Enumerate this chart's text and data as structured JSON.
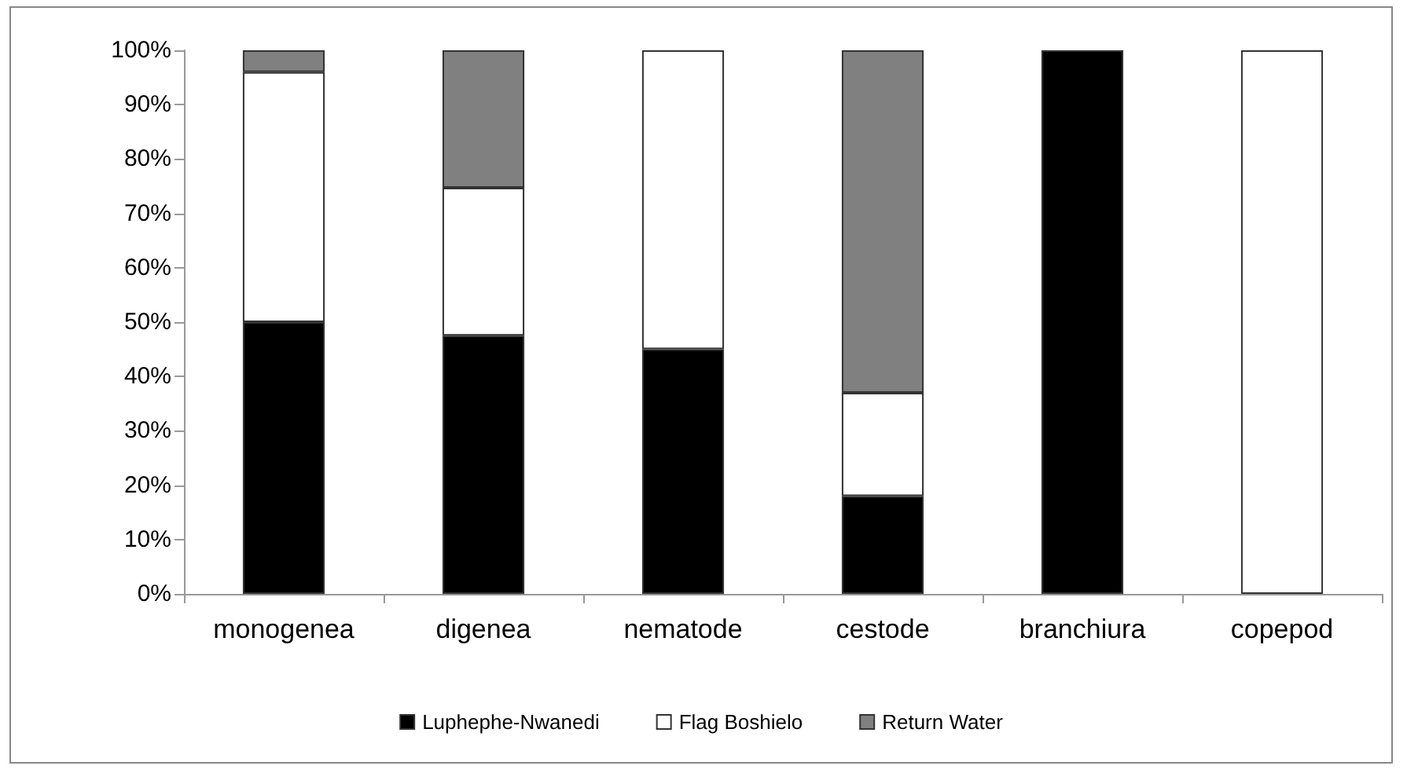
{
  "chart_data": {
    "type": "bar",
    "stacked": true,
    "categories": [
      "monogenea",
      "digenea",
      "nematode",
      "cestode",
      "branchiura",
      "copepod"
    ],
    "series": [
      {
        "name": "Luphephe-Nwanedi",
        "color": "#000000",
        "values": [
          50,
          47.5,
          45,
          18,
          100,
          null
        ]
      },
      {
        "name": "Flag Boshielo",
        "color": "#ffffff",
        "values": [
          46,
          27.2,
          55,
          19,
          null,
          100
        ]
      },
      {
        "name": "Return Water",
        "color": "#808080",
        "values": [
          4,
          25.3,
          null,
          63,
          null,
          null
        ]
      }
    ],
    "ylim": [
      0,
      100
    ],
    "yticks": [
      {
        "value": 0,
        "label": "0%"
      },
      {
        "value": 10,
        "label": "10%"
      },
      {
        "value": 20,
        "label": "20%"
      },
      {
        "value": 30,
        "label": "30%"
      },
      {
        "value": 40,
        "label": "40%"
      },
      {
        "value": 50,
        "label": "50%"
      },
      {
        "value": 60,
        "label": "60%"
      },
      {
        "value": 70,
        "label": "70%"
      },
      {
        "value": 80,
        "label": "80%"
      },
      {
        "value": 90,
        "label": "90%"
      },
      {
        "value": 100,
        "label": "100%"
      }
    ],
    "grid": false,
    "legend": "bottom"
  }
}
